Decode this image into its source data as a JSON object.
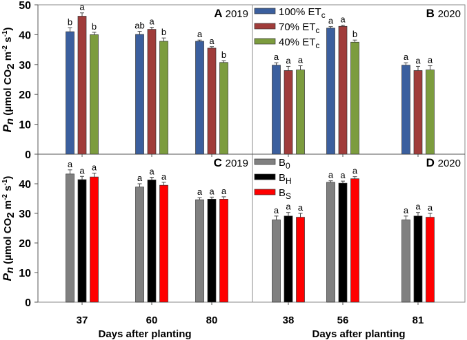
{
  "chart_data": [
    {
      "type": "bar",
      "panel": "A",
      "year": "2019",
      "categories": [
        "37",
        "60",
        "80"
      ],
      "ylim": [
        0,
        50
      ],
      "yticks": [
        0,
        10,
        20,
        30,
        40,
        50
      ],
      "ylabel": "Pn (µmol CO2 m-2 s-1)",
      "xlabel": "Days after planting",
      "series": [
        {
          "name": "100% ETc",
          "color": "#3b5f9e",
          "values": [
            41.0,
            40.1,
            37.8
          ],
          "errors": [
            1.3,
            1.0,
            0.4
          ],
          "letters": [
            "b",
            "ab",
            "a"
          ]
        },
        {
          "name": "70% ETc",
          "color": "#a03c3a",
          "values": [
            46.2,
            41.8,
            35.5
          ],
          "errors": [
            1.1,
            0.7,
            0.5
          ],
          "letters": [
            "a",
            "a",
            "a"
          ]
        },
        {
          "name": "40% ETc",
          "color": "#7c9c3e",
          "values": [
            40.0,
            37.8,
            30.7
          ],
          "errors": [
            0.8,
            1.1,
            0.6
          ],
          "letters": [
            "b",
            "b",
            "b"
          ]
        }
      ]
    },
    {
      "type": "bar",
      "panel": "B",
      "year": "2020",
      "categories": [
        "38",
        "56",
        "81"
      ],
      "ylim": [
        0,
        50
      ],
      "series": [
        {
          "name": "100% ETc",
          "color": "#3b5f9e",
          "values": [
            29.8,
            42.2,
            29.8
          ],
          "errors": [
            0.8,
            0.5,
            0.8
          ],
          "letters": [
            "a",
            "a",
            "a"
          ]
        },
        {
          "name": "70% ETc",
          "color": "#a03c3a",
          "values": [
            28.0,
            42.8,
            28.0
          ],
          "errors": [
            1.4,
            0.4,
            1.4
          ],
          "letters": [
            "a",
            "a",
            "a"
          ]
        },
        {
          "name": "40% ETc",
          "color": "#7c9c3e",
          "values": [
            28.2,
            37.5,
            28.2
          ],
          "errors": [
            1.4,
            0.7,
            1.4
          ],
          "letters": [
            "a",
            "b",
            "a"
          ]
        }
      ]
    },
    {
      "type": "bar",
      "panel": "C",
      "year": "2019",
      "categories": [
        "37",
        "60",
        "80"
      ],
      "ylim": [
        0,
        50
      ],
      "yticks": [
        0,
        10,
        20,
        30,
        40
      ],
      "ylabel": "Pn (µmol CO2 m-2 s-1)",
      "xlabel": "Days after planting",
      "series": [
        {
          "name": "B0",
          "color": "#808080",
          "values": [
            43.3,
            38.9,
            34.6
          ],
          "errors": [
            1.4,
            1.1,
            0.7
          ],
          "letters": [
            "a",
            "a",
            "a"
          ]
        },
        {
          "name": "BH",
          "color": "#000000",
          "values": [
            41.4,
            41.3,
            34.8
          ],
          "errors": [
            1.1,
            0.9,
            0.7
          ],
          "letters": [
            "a",
            "a",
            "a"
          ]
        },
        {
          "name": "BS",
          "color": "#ff0000",
          "values": [
            42.3,
            39.5,
            34.8
          ],
          "errors": [
            1.3,
            1.0,
            0.8
          ],
          "letters": [
            "a",
            "a",
            "a"
          ]
        }
      ]
    },
    {
      "type": "bar",
      "panel": "D",
      "year": "2020",
      "categories": [
        "38",
        "56",
        "81"
      ],
      "ylim": [
        0,
        50
      ],
      "xlabel": "Days after planting",
      "series": [
        {
          "name": "B0",
          "color": "#808080",
          "values": [
            27.8,
            40.5,
            27.8
          ],
          "errors": [
            1.3,
            0.5,
            1.3
          ],
          "letters": [
            "a",
            "a",
            "a"
          ]
        },
        {
          "name": "BH",
          "color": "#000000",
          "values": [
            29.1,
            40.2,
            29.1
          ],
          "errors": [
            1.2,
            0.7,
            1.2
          ],
          "letters": [
            "a",
            "a",
            "a"
          ]
        },
        {
          "name": "BS",
          "color": "#ff0000",
          "values": [
            28.7,
            41.7,
            28.7
          ],
          "errors": [
            1.3,
            0.7,
            1.3
          ],
          "letters": [
            "a",
            "a",
            "a"
          ]
        }
      ]
    }
  ],
  "legend_top": [
    {
      "main": "100% ET",
      "sub": "c"
    },
    {
      "main": "70% ET",
      "sub": "c"
    },
    {
      "main": "40% ET",
      "sub": "c"
    }
  ],
  "legend_bottom": [
    {
      "main": "B",
      "sub": "0"
    },
    {
      "main": "B",
      "sub": "H"
    },
    {
      "main": "B",
      "sub": "S"
    }
  ],
  "ylabel": {
    "p": "P",
    "n": "n",
    "rest1": " (µmol CO",
    "two": "2",
    "rest2": " m",
    "exp1": "-2",
    "rest3": " s",
    "exp2": "-1",
    "close": ")"
  },
  "xlabel": "Days after planting"
}
